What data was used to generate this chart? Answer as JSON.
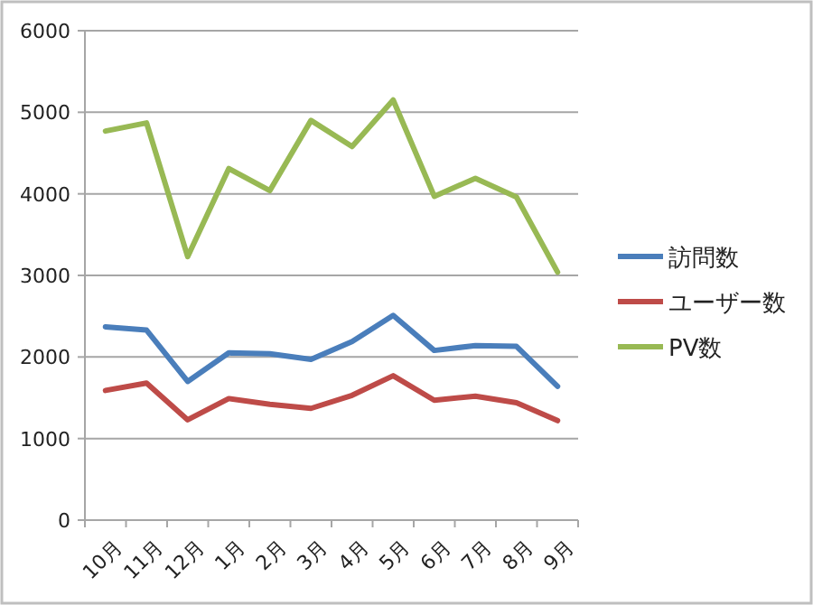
{
  "chart_data": {
    "type": "line",
    "categories": [
      "10月",
      "11月",
      "12月",
      "1月",
      "2月",
      "3月",
      "4月",
      "5月",
      "6月",
      "7月",
      "8月",
      "9月"
    ],
    "series": [
      {
        "name": "訪問数",
        "color": "#4a7ebb",
        "values": [
          2370,
          2330,
          1700,
          2050,
          2040,
          1970,
          2190,
          2510,
          2080,
          2140,
          2130,
          1640
        ]
      },
      {
        "name": "ユーザー数",
        "color": "#be4b48",
        "values": [
          1590,
          1680,
          1230,
          1490,
          1420,
          1370,
          1530,
          1770,
          1470,
          1520,
          1440,
          1220
        ]
      },
      {
        "name": "PV数",
        "color": "#98b954",
        "values": [
          4770,
          4870,
          3230,
          4310,
          4040,
          4900,
          4580,
          5150,
          3970,
          4190,
          3960,
          3040
        ]
      }
    ],
    "ylim": [
      0,
      6000
    ],
    "yticks": [
      0,
      1000,
      2000,
      3000,
      4000,
      5000,
      6000
    ],
    "grid": "y",
    "legend": "right",
    "marker": "none",
    "line_style": "solid"
  }
}
